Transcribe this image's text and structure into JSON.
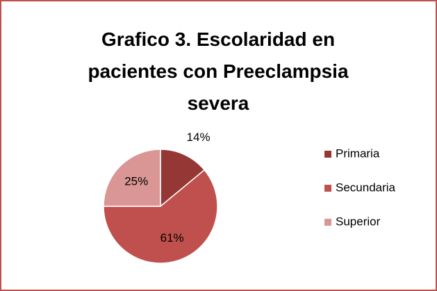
{
  "chart_data": {
    "type": "pie",
    "title": "Grafico 3. Escolaridad en pacientes con Preeclampsia severa",
    "categories": [
      "Primaria",
      "Secundaria",
      "Superior"
    ],
    "values": [
      14,
      61,
      25
    ],
    "value_labels": [
      "14%",
      "61%",
      "25%"
    ],
    "colors": [
      "#953735",
      "#c0504d",
      "#d99694"
    ],
    "legend": "right"
  }
}
